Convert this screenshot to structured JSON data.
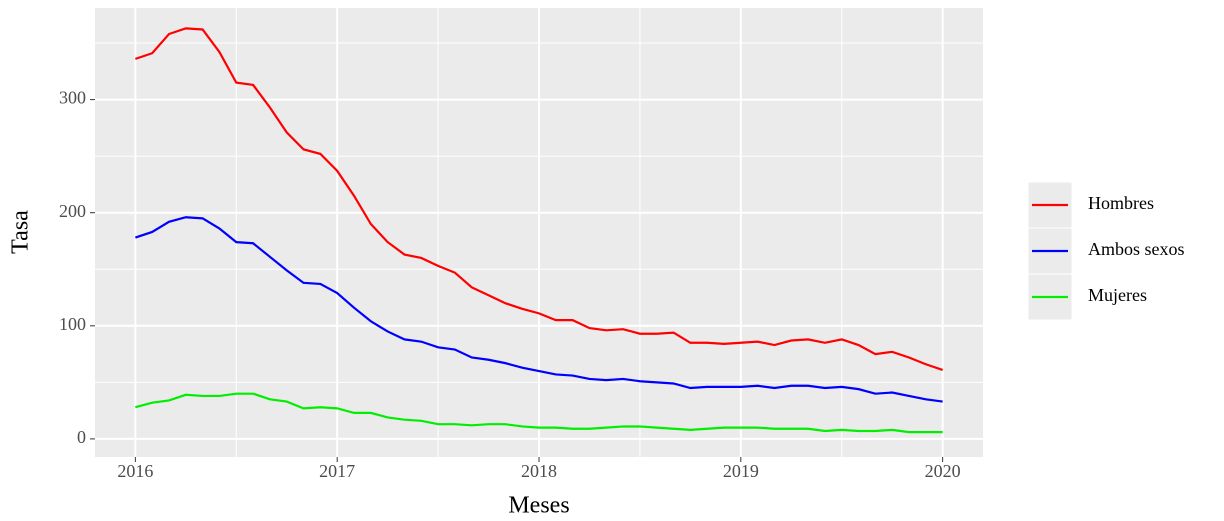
{
  "chart_data": {
    "type": "line",
    "x_label": "Meses",
    "y_label": "Tasa",
    "x": [
      2016,
      2016.0833,
      2016.1667,
      2016.25,
      2016.3333,
      2016.4167,
      2016.5,
      2016.5833,
      2016.6667,
      2016.75,
      2016.8333,
      2016.9167,
      2017,
      2017.0833,
      2017.1667,
      2017.25,
      2017.3333,
      2017.4167,
      2017.5,
      2017.5833,
      2017.6667,
      2017.75,
      2017.8333,
      2017.9167,
      2018,
      2018.0833,
      2018.1667,
      2018.25,
      2018.3333,
      2018.4167,
      2018.5,
      2018.5833,
      2018.6667,
      2018.75,
      2018.8333,
      2018.9167,
      2019,
      2019.0833,
      2019.1667,
      2019.25,
      2019.3333,
      2019.4167,
      2019.5,
      2019.5833,
      2019.6667,
      2019.75,
      2019.8333,
      2019.9167,
      2020
    ],
    "series": [
      {
        "name": "Hombres",
        "color": "#ff0000",
        "values": [
          336,
          341,
          358,
          363,
          362,
          342,
          315,
          313,
          293,
          271,
          256,
          252,
          237,
          215,
          190,
          174,
          163,
          160,
          153,
          147,
          134,
          127,
          120,
          115,
          111,
          105,
          105,
          98,
          96,
          97,
          93,
          93,
          94,
          85,
          85,
          84,
          85,
          86,
          83,
          87,
          88,
          85,
          88,
          83,
          75,
          77,
          72,
          66,
          61
        ]
      },
      {
        "name": "Ambos sexos",
        "color": "#0000ff",
        "values": [
          178,
          183,
          192,
          196,
          195,
          186,
          174,
          173,
          161,
          149,
          138,
          137,
          129,
          116,
          104,
          95,
          88,
          86,
          81,
          79,
          72,
          70,
          67,
          63,
          60,
          57,
          56,
          53,
          52,
          53,
          51,
          50,
          49,
          45,
          46,
          46,
          46,
          47,
          45,
          47,
          47,
          45,
          46,
          44,
          40,
          41,
          38,
          35,
          33
        ]
      },
      {
        "name": "Mujeres",
        "color": "#00ee00",
        "values": [
          28,
          32,
          34,
          39,
          38,
          38,
          40,
          40,
          35,
          33,
          27,
          28,
          27,
          23,
          23,
          19,
          17,
          16,
          13,
          13,
          12,
          13,
          13,
          11,
          10,
          10,
          9,
          9,
          10,
          11,
          11,
          10,
          9,
          8,
          9,
          10,
          10,
          10,
          9,
          9,
          9,
          7,
          8,
          7,
          7,
          8,
          6,
          6,
          6
        ]
      }
    ],
    "xlim": [
      2015.8,
      2020.2
    ],
    "xticks": [
      2016,
      2017,
      2018,
      2019,
      2020
    ],
    "xminorticks": [
      2016.5,
      2017.5,
      2018.5,
      2019.5
    ],
    "ylim": [
      -16,
      381
    ],
    "yticks": [
      0,
      100,
      200,
      300
    ],
    "yminorticks": [
      50,
      150,
      250,
      350
    ],
    "grid": true,
    "legend": "right"
  }
}
